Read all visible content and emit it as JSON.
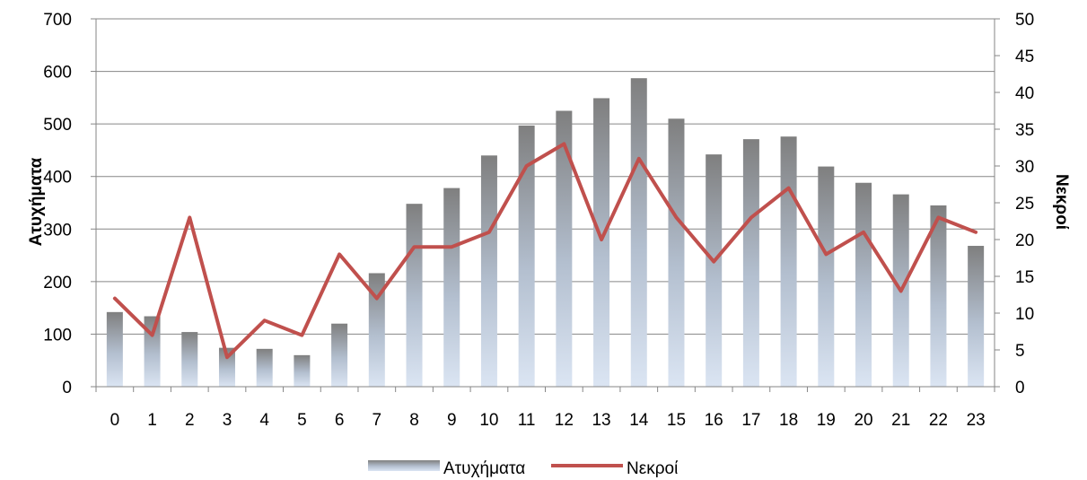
{
  "chart_data": {
    "type": "bar+line",
    "categories": [
      "0",
      "1",
      "2",
      "3",
      "4",
      "5",
      "6",
      "7",
      "8",
      "9",
      "10",
      "11",
      "12",
      "13",
      "14",
      "15",
      "16",
      "17",
      "18",
      "19",
      "20",
      "21",
      "22",
      "23"
    ],
    "series": [
      {
        "name": "Ατυχήματα",
        "type": "bar",
        "axis": "left",
        "values": [
          142,
          134,
          104,
          74,
          72,
          60,
          120,
          216,
          348,
          378,
          440,
          497,
          525,
          549,
          587,
          510,
          442,
          471,
          476,
          419,
          388,
          366,
          345,
          268
        ]
      },
      {
        "name": "Νεκροί",
        "type": "line",
        "axis": "right",
        "color": "#c0504d",
        "values": [
          12,
          7,
          23,
          4,
          9,
          7,
          18,
          12,
          19,
          19,
          21,
          30,
          33,
          20,
          31,
          23,
          17,
          23,
          27,
          18,
          21,
          13,
          23,
          21
        ]
      }
    ],
    "ylabel": "Ατυχήματα",
    "y2label": "Νεκροί",
    "ylim": [
      0,
      700
    ],
    "y2lim": [
      0,
      50
    ],
    "yticks": [
      "0",
      "100",
      "200",
      "300",
      "400",
      "500",
      "600",
      "700"
    ],
    "y2ticks": [
      "0",
      "5",
      "10",
      "15",
      "20",
      "25",
      "30",
      "35",
      "40",
      "45",
      "50"
    ],
    "grid": true,
    "legend": "bottom",
    "colors": {
      "bar_top": "#7f7f7f",
      "bar_bottom": "#dbe5f3",
      "line": "#c0504d",
      "grid": "#868686"
    }
  }
}
